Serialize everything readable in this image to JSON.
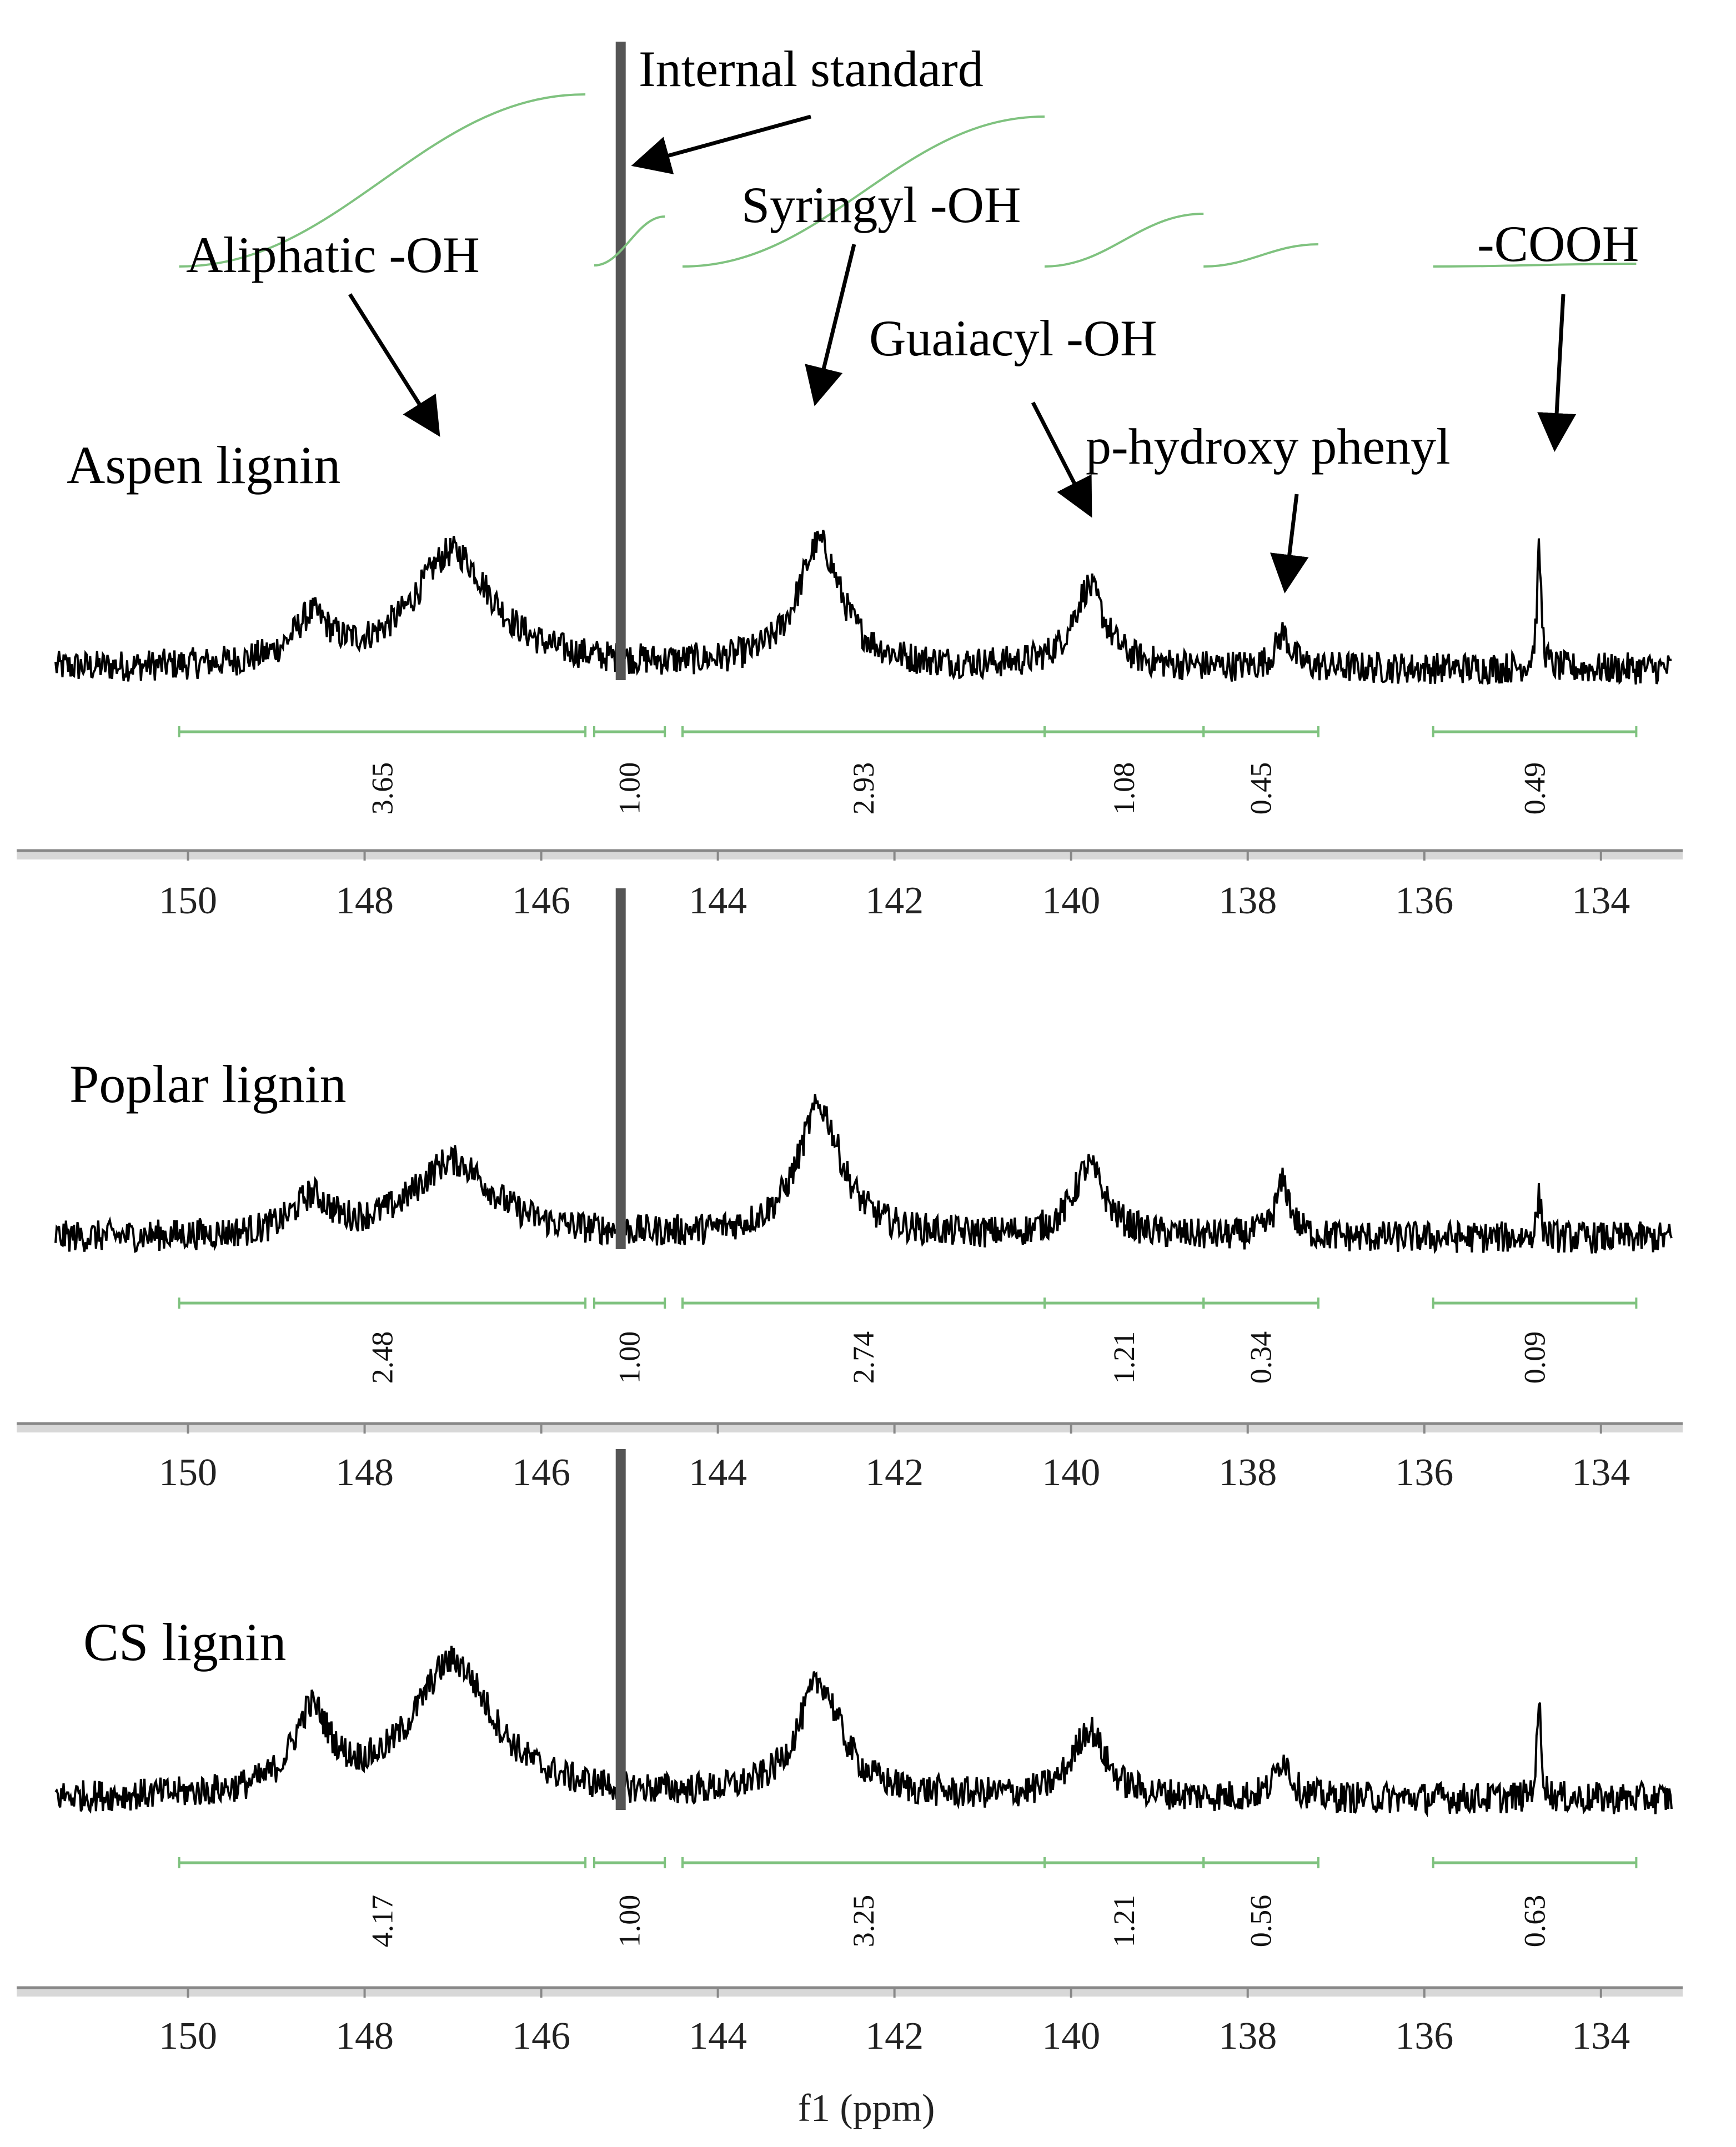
{
  "chart_data": {
    "type": "line",
    "xlabel": "f1  (ppm)",
    "xlim": [
      151.5,
      133.2
    ],
    "x_ticks": [
      150,
      148,
      146,
      144,
      142,
      140,
      138,
      136,
      134
    ],
    "integration_ranges": [
      [
        150.1,
        145.5
      ],
      [
        145.4,
        144.6
      ],
      [
        144.4,
        140.3
      ],
      [
        140.3,
        138.5
      ],
      [
        138.5,
        137.2
      ],
      [
        135.9,
        133.6
      ]
    ],
    "annotations": [
      {
        "text": "Internal standard",
        "ppm": 145.1
      },
      {
        "text": "Aliphatic -OH",
        "ppm": 147.0
      },
      {
        "text": "Syringyl  -OH",
        "ppm": 142.9
      },
      {
        "text": "Guaiacyl -OH",
        "ppm": 139.8
      },
      {
        "text": "p-hydroxy phenyl",
        "ppm": 137.6
      },
      {
        "text": "-COOH",
        "ppm": 134.7
      }
    ],
    "peak_positions": [
      148.6,
      147.0,
      145.1,
      142.85,
      139.8,
      137.6,
      134.7
    ],
    "peak_widths": [
      0.25,
      0.55,
      0.03,
      0.3,
      0.22,
      0.1,
      0.03
    ],
    "panels": [
      {
        "name": "Aspen lignin",
        "integrals": [
          "3.65",
          "1.00",
          "2.93",
          "1.08",
          "0.45",
          "0.49"
        ],
        "peak_heights": [
          0.22,
          0.58,
          1.75,
          0.62,
          0.4,
          0.17,
          0.58
        ]
      },
      {
        "name": "Poplar lignin",
        "integrals": [
          "2.48",
          "1.00",
          "2.74",
          "1.21",
          "0.34",
          "0.09"
        ],
        "peak_heights": [
          0.18,
          0.38,
          1.75,
          0.65,
          0.35,
          0.27,
          0.2
        ]
      },
      {
        "name": "CS lignin",
        "integrals": [
          "4.17",
          "1.00",
          "3.25",
          "1.21",
          "0.56",
          "0.63"
        ],
        "peak_heights": [
          0.4,
          0.68,
          1.75,
          0.57,
          0.34,
          0.2,
          0.47
        ]
      }
    ]
  },
  "colors": {
    "spectrum": "#000000",
    "standard_peak": "#555555",
    "integral": "#7fc27f",
    "axis": "#888888"
  }
}
